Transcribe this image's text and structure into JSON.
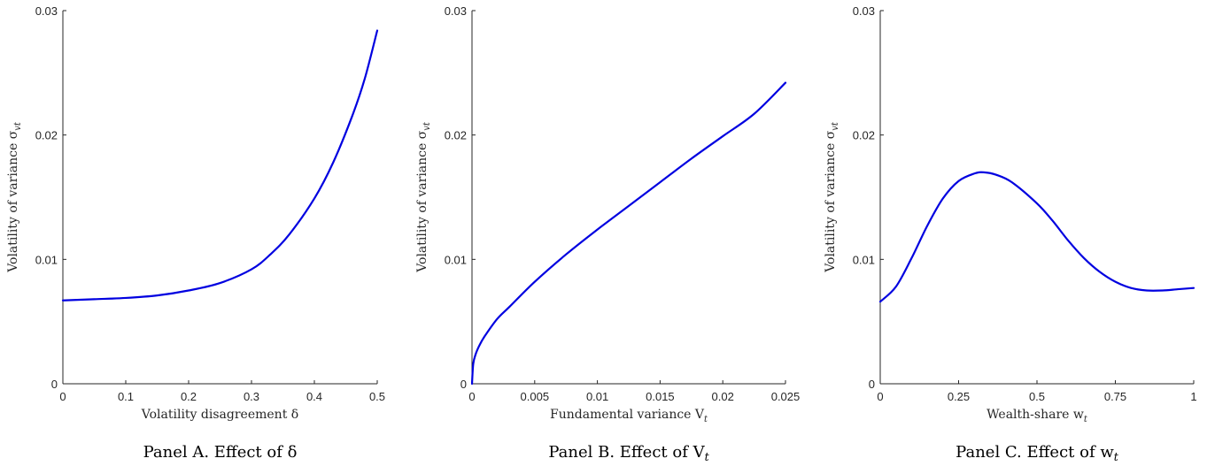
{
  "colors": {
    "series": "#0000e0",
    "axis": "#262626"
  },
  "chart_data": [
    {
      "type": "line",
      "panel": "A",
      "caption": "Panel A. Effect of δ",
      "xlabel": "Volatility disagreement δ",
      "ylabel": "Volatility of variance σ_vt",
      "xlim": [
        0,
        0.5
      ],
      "ylim": [
        0,
        0.03
      ],
      "xticks": [
        0,
        0.1,
        0.2,
        0.3,
        0.4,
        0.5
      ],
      "xtick_labels": [
        "0",
        "0.1",
        "0.2",
        "0.3",
        "0.4",
        "0.5"
      ],
      "yticks": [
        0,
        0.01,
        0.02,
        0.03
      ],
      "ytick_labels": [
        "0",
        "0.01",
        "0.02",
        "0.03"
      ],
      "grid": false,
      "x": [
        0,
        0.05,
        0.1,
        0.15,
        0.2,
        0.25,
        0.3,
        0.33,
        0.36,
        0.4,
        0.43,
        0.46,
        0.48,
        0.5
      ],
      "y": [
        0.0067,
        0.0068,
        0.0069,
        0.0071,
        0.0075,
        0.0081,
        0.0092,
        0.0104,
        0.012,
        0.0149,
        0.0178,
        0.0215,
        0.0245,
        0.0284
      ]
    },
    {
      "type": "line",
      "panel": "B",
      "caption": "Panel B. Effect of V_t",
      "xlabel": "Fundamental variance V_t",
      "ylabel": "Volatility of variance σ_vt",
      "xlim": [
        0,
        0.025
      ],
      "ylim": [
        0,
        0.03
      ],
      "xticks": [
        0,
        0.005,
        0.01,
        0.015,
        0.02,
        0.025
      ],
      "xtick_labels": [
        "0",
        "0.005",
        "0.01",
        "0.015",
        "0.02",
        "0.025"
      ],
      "yticks": [
        0,
        0.01,
        0.02,
        0.03
      ],
      "ytick_labels": [
        "0",
        "0.01",
        "0.02",
        "0.03"
      ],
      "grid": false,
      "x": [
        0,
        0.0001,
        0.0003,
        0.0006,
        0.001,
        0.002,
        0.003,
        0.005,
        0.0075,
        0.01,
        0.0125,
        0.015,
        0.0175,
        0.02,
        0.0225,
        0.025
      ],
      "y": [
        0,
        0.0016,
        0.0024,
        0.0031,
        0.0038,
        0.0052,
        0.0062,
        0.0082,
        0.0104,
        0.0124,
        0.0143,
        0.0162,
        0.0181,
        0.0199,
        0.0217,
        0.0242
      ]
    },
    {
      "type": "line",
      "panel": "C",
      "caption": "Panel C. Effect of w_t",
      "xlabel": "Wealth-share w_t",
      "ylabel": "Volatility of variance σ_vt",
      "xlim": [
        0,
        1
      ],
      "ylim": [
        0,
        0.03
      ],
      "xticks": [
        0,
        0.25,
        0.5,
        0.75,
        1
      ],
      "xtick_labels": [
        "0",
        "0.25",
        "0.5",
        "0.75",
        "1"
      ],
      "yticks": [
        0,
        0.01,
        0.02,
        0.03
      ],
      "ytick_labels": [
        "0",
        "0.01",
        "0.02",
        "0.03"
      ],
      "grid": false,
      "x": [
        0,
        0.05,
        0.1,
        0.15,
        0.2,
        0.25,
        0.3,
        0.33,
        0.37,
        0.42,
        0.5,
        0.55,
        0.6,
        0.65,
        0.7,
        0.75,
        0.8,
        0.85,
        0.9,
        0.95,
        1
      ],
      "y": [
        0.0066,
        0.0078,
        0.0101,
        0.0127,
        0.0149,
        0.0163,
        0.0169,
        0.017,
        0.0168,
        0.0162,
        0.0145,
        0.0131,
        0.0115,
        0.0101,
        0.009,
        0.0082,
        0.0077,
        0.0075,
        0.0075,
        0.0076,
        0.0077
      ]
    }
  ]
}
